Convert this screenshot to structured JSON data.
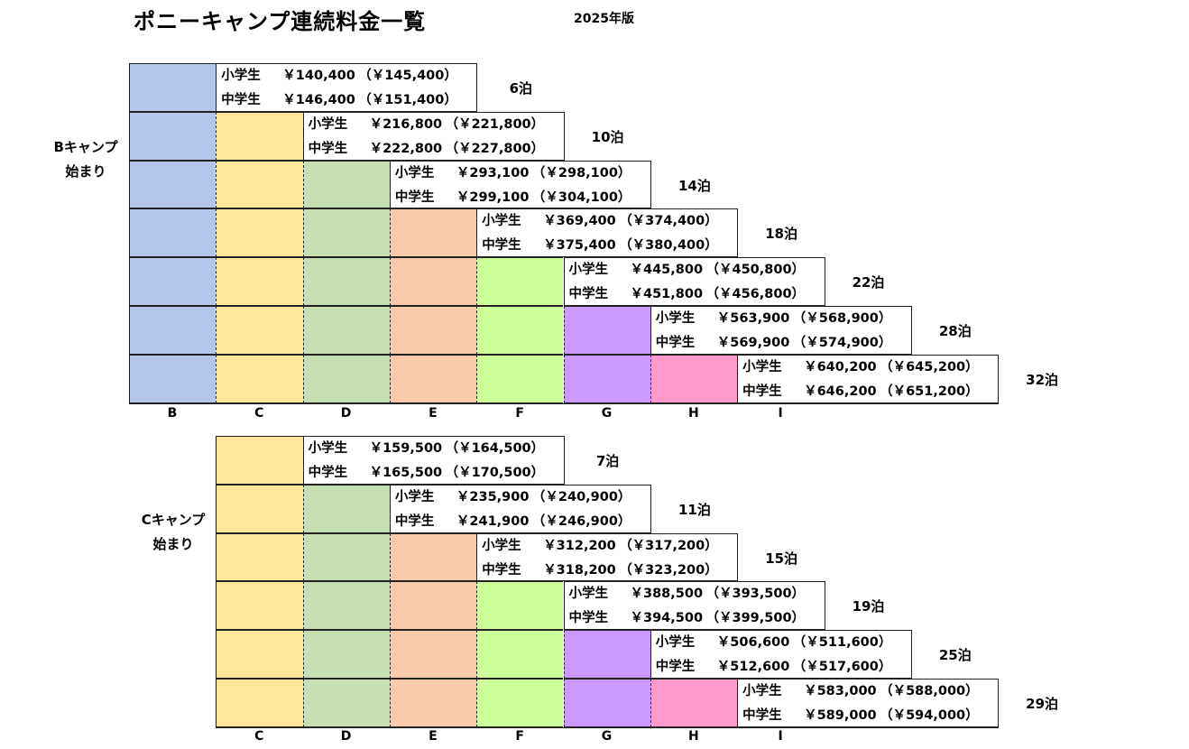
{
  "title": "ポニーキャンプ連続料金一覧",
  "edition": "2025年版",
  "colors": {
    "B": "#b4c6e7",
    "C": "#ffe699",
    "D": "#c6e0b4",
    "E": "#f8cbad",
    "F": "#ccff99",
    "G": "#cc99ff",
    "H": "#ff99cc",
    "I": "#dae0f3"
  },
  "sections": [
    {
      "label": [
        "Bキャンプ",
        "始まり"
      ],
      "start_column": "B",
      "columns": [
        "B",
        "C",
        "D",
        "E",
        "F",
        "G",
        "H",
        "I"
      ],
      "rows": [
        {
          "nights": "6泊",
          "elementary": "小学生",
          "elementary_price": "￥140,400",
          "elementary_alt": "（￥145,400）",
          "junior": "中学生",
          "junior_price": "￥146,400",
          "junior_alt": "（￥151,400）"
        },
        {
          "nights": "10泊",
          "elementary": "小学生",
          "elementary_price": "￥216,800",
          "elementary_alt": "（￥221,800）",
          "junior": "中学生",
          "junior_price": "￥222,800",
          "junior_alt": "（￥227,800）"
        },
        {
          "nights": "14泊",
          "elementary": "小学生",
          "elementary_price": "￥293,100",
          "elementary_alt": "（￥298,100）",
          "junior": "中学生",
          "junior_price": "￥299,100",
          "junior_alt": "（￥304,100）"
        },
        {
          "nights": "18泊",
          "elementary": "小学生",
          "elementary_price": "￥369,400",
          "elementary_alt": "（￥374,400）",
          "junior": "中学生",
          "junior_price": "￥375,400",
          "junior_alt": "（￥380,400）"
        },
        {
          "nights": "22泊",
          "elementary": "小学生",
          "elementary_price": "￥445,800",
          "elementary_alt": "（￥450,800）",
          "junior": "中学生",
          "junior_price": "￥451,800",
          "junior_alt": "（￥456,800）"
        },
        {
          "nights": "28泊",
          "elementary": "小学生",
          "elementary_price": "￥563,900",
          "elementary_alt": "（￥568,900）",
          "junior": "中学生",
          "junior_price": "￥569,900",
          "junior_alt": "（￥574,900）"
        },
        {
          "nights": "32泊",
          "elementary": "小学生",
          "elementary_price": "￥640,200",
          "elementary_alt": "（￥645,200）",
          "junior": "中学生",
          "junior_price": "￥646,200",
          "junior_alt": "（￥651,200）"
        }
      ]
    },
    {
      "label": [
        "Cキャンプ",
        "始まり"
      ],
      "start_column": "C",
      "columns": [
        "C",
        "D",
        "E",
        "F",
        "G",
        "H",
        "I"
      ],
      "rows": [
        {
          "nights": "7泊",
          "elementary": "小学生",
          "elementary_price": "￥159,500",
          "elementary_alt": "（￥164,500）",
          "junior": "中学生",
          "junior_price": "￥165,500",
          "junior_alt": "（￥170,500）"
        },
        {
          "nights": "11泊",
          "elementary": "小学生",
          "elementary_price": "￥235,900",
          "elementary_alt": "（￥240,900）",
          "junior": "中学生",
          "junior_price": "￥241,900",
          "junior_alt": "（￥246,900）"
        },
        {
          "nights": "15泊",
          "elementary": "小学生",
          "elementary_price": "￥312,200",
          "elementary_alt": "（￥317,200）",
          "junior": "中学生",
          "junior_price": "￥318,200",
          "junior_alt": "（￥323,200）"
        },
        {
          "nights": "19泊",
          "elementary": "小学生",
          "elementary_price": "￥388,500",
          "elementary_alt": "（￥393,500）",
          "junior": "中学生",
          "junior_price": "￥394,500",
          "junior_alt": "（￥399,500）"
        },
        {
          "nights": "25泊",
          "elementary": "小学生",
          "elementary_price": "￥506,600",
          "elementary_alt": "（￥511,600）",
          "junior": "中学生",
          "junior_price": "￥512,600",
          "junior_alt": "（￥517,600）"
        },
        {
          "nights": "29泊",
          "elementary": "小学生",
          "elementary_price": "￥583,000",
          "elementary_alt": "（￥588,000）",
          "junior": "中学生",
          "junior_price": "￥589,000",
          "junior_alt": "（￥594,000）"
        }
      ]
    }
  ]
}
